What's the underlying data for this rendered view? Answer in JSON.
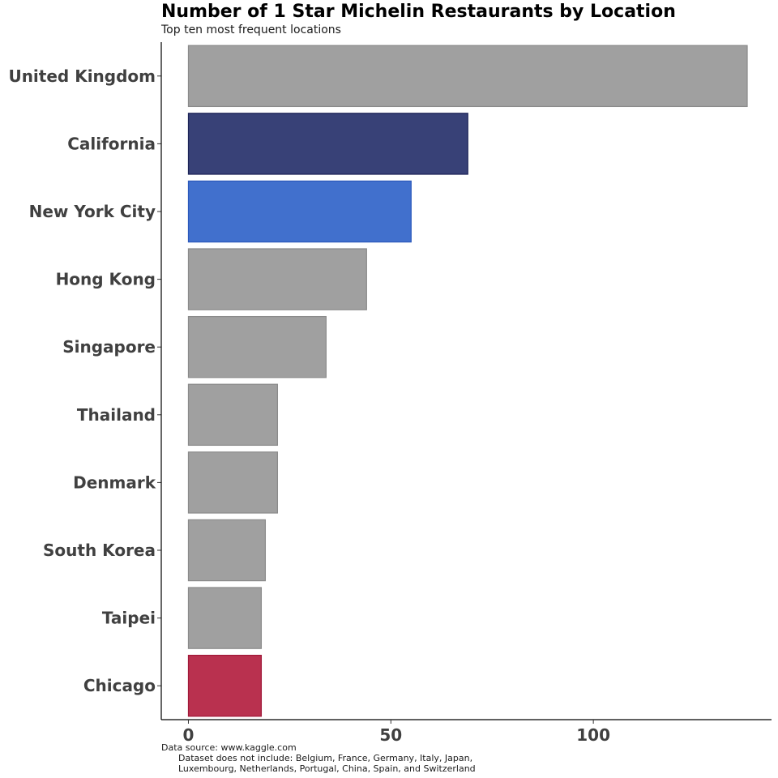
{
  "chart_data": {
    "type": "bar",
    "orientation": "horizontal",
    "title": "Number of 1 Star Michelin Restaurants by Location",
    "subtitle": "Top ten most frequent locations",
    "caption": [
      "Data source: www.kaggle.com",
      "Dataset does not include: Belgium, France, Germany, Italy, Japan,",
      "Luxembourg, Netherlands, Portugal, China, Spain, and Switzerland"
    ],
    "categories": [
      "United Kingdom",
      "California",
      "New York City",
      "Hong Kong",
      "Singapore",
      "Thailand",
      "Denmark",
      "South Korea",
      "Taipei",
      "Chicago"
    ],
    "values": [
      138,
      69,
      55,
      44,
      34,
      22,
      22,
      19,
      18,
      18
    ],
    "bar_colors": [
      "#a0a0a0",
      "#384177",
      "#4170cd",
      "#a0a0a0",
      "#a0a0a0",
      "#a0a0a0",
      "#a0a0a0",
      "#a0a0a0",
      "#a0a0a0",
      "#b9314f"
    ],
    "bar_border_colors": [
      "#8a8a8a",
      "#1b2256",
      "#2a58bb",
      "#8a8a8a",
      "#8a8a8a",
      "#8a8a8a",
      "#8a8a8a",
      "#8a8a8a",
      "#8a8a8a",
      "#a01838"
    ],
    "xlim": [
      -6.7,
      144
    ],
    "xticks": [
      0,
      50,
      100
    ],
    "xlabel": "",
    "ylabel": "",
    "grid": false,
    "legend": "none"
  }
}
